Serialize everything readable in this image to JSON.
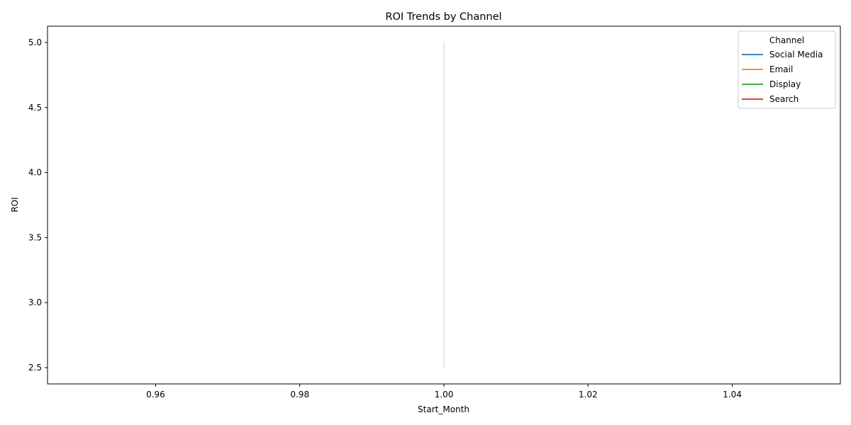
{
  "chart_data": {
    "type": "line",
    "title": "ROI Trends by Channel",
    "xlabel": "Start_Month",
    "ylabel": "ROI",
    "xlim": [
      0.945,
      1.055
    ],
    "ylim": [
      2.375,
      5.125
    ],
    "xticks": [
      0.96,
      0.98,
      1.0,
      1.02,
      1.04
    ],
    "xtick_labels": [
      "0.96",
      "0.98",
      "1.00",
      "1.02",
      "1.04"
    ],
    "yticks": [
      2.5,
      3.0,
      3.5,
      4.0,
      4.5,
      5.0
    ],
    "ytick_labels": [
      "2.5",
      "3.0",
      "3.5",
      "4.0",
      "4.5",
      "5.0"
    ],
    "grid": false,
    "legend": {
      "title": "Channel",
      "placement": "top-right"
    },
    "series": [
      {
        "name": "Social Media",
        "color": "#1f77b4",
        "x": [
          1.0,
          1.0
        ],
        "y": [
          2.5,
          5.0
        ],
        "band": {
          "x": 1.0,
          "low": 2.5,
          "high": 5.0
        }
      },
      {
        "name": "Email",
        "color": "#ff7f0e",
        "x": [],
        "y": []
      },
      {
        "name": "Display",
        "color": "#2ca02c",
        "x": [],
        "y": []
      },
      {
        "name": "Search",
        "color": "#d62728",
        "x": [],
        "y": []
      }
    ]
  }
}
